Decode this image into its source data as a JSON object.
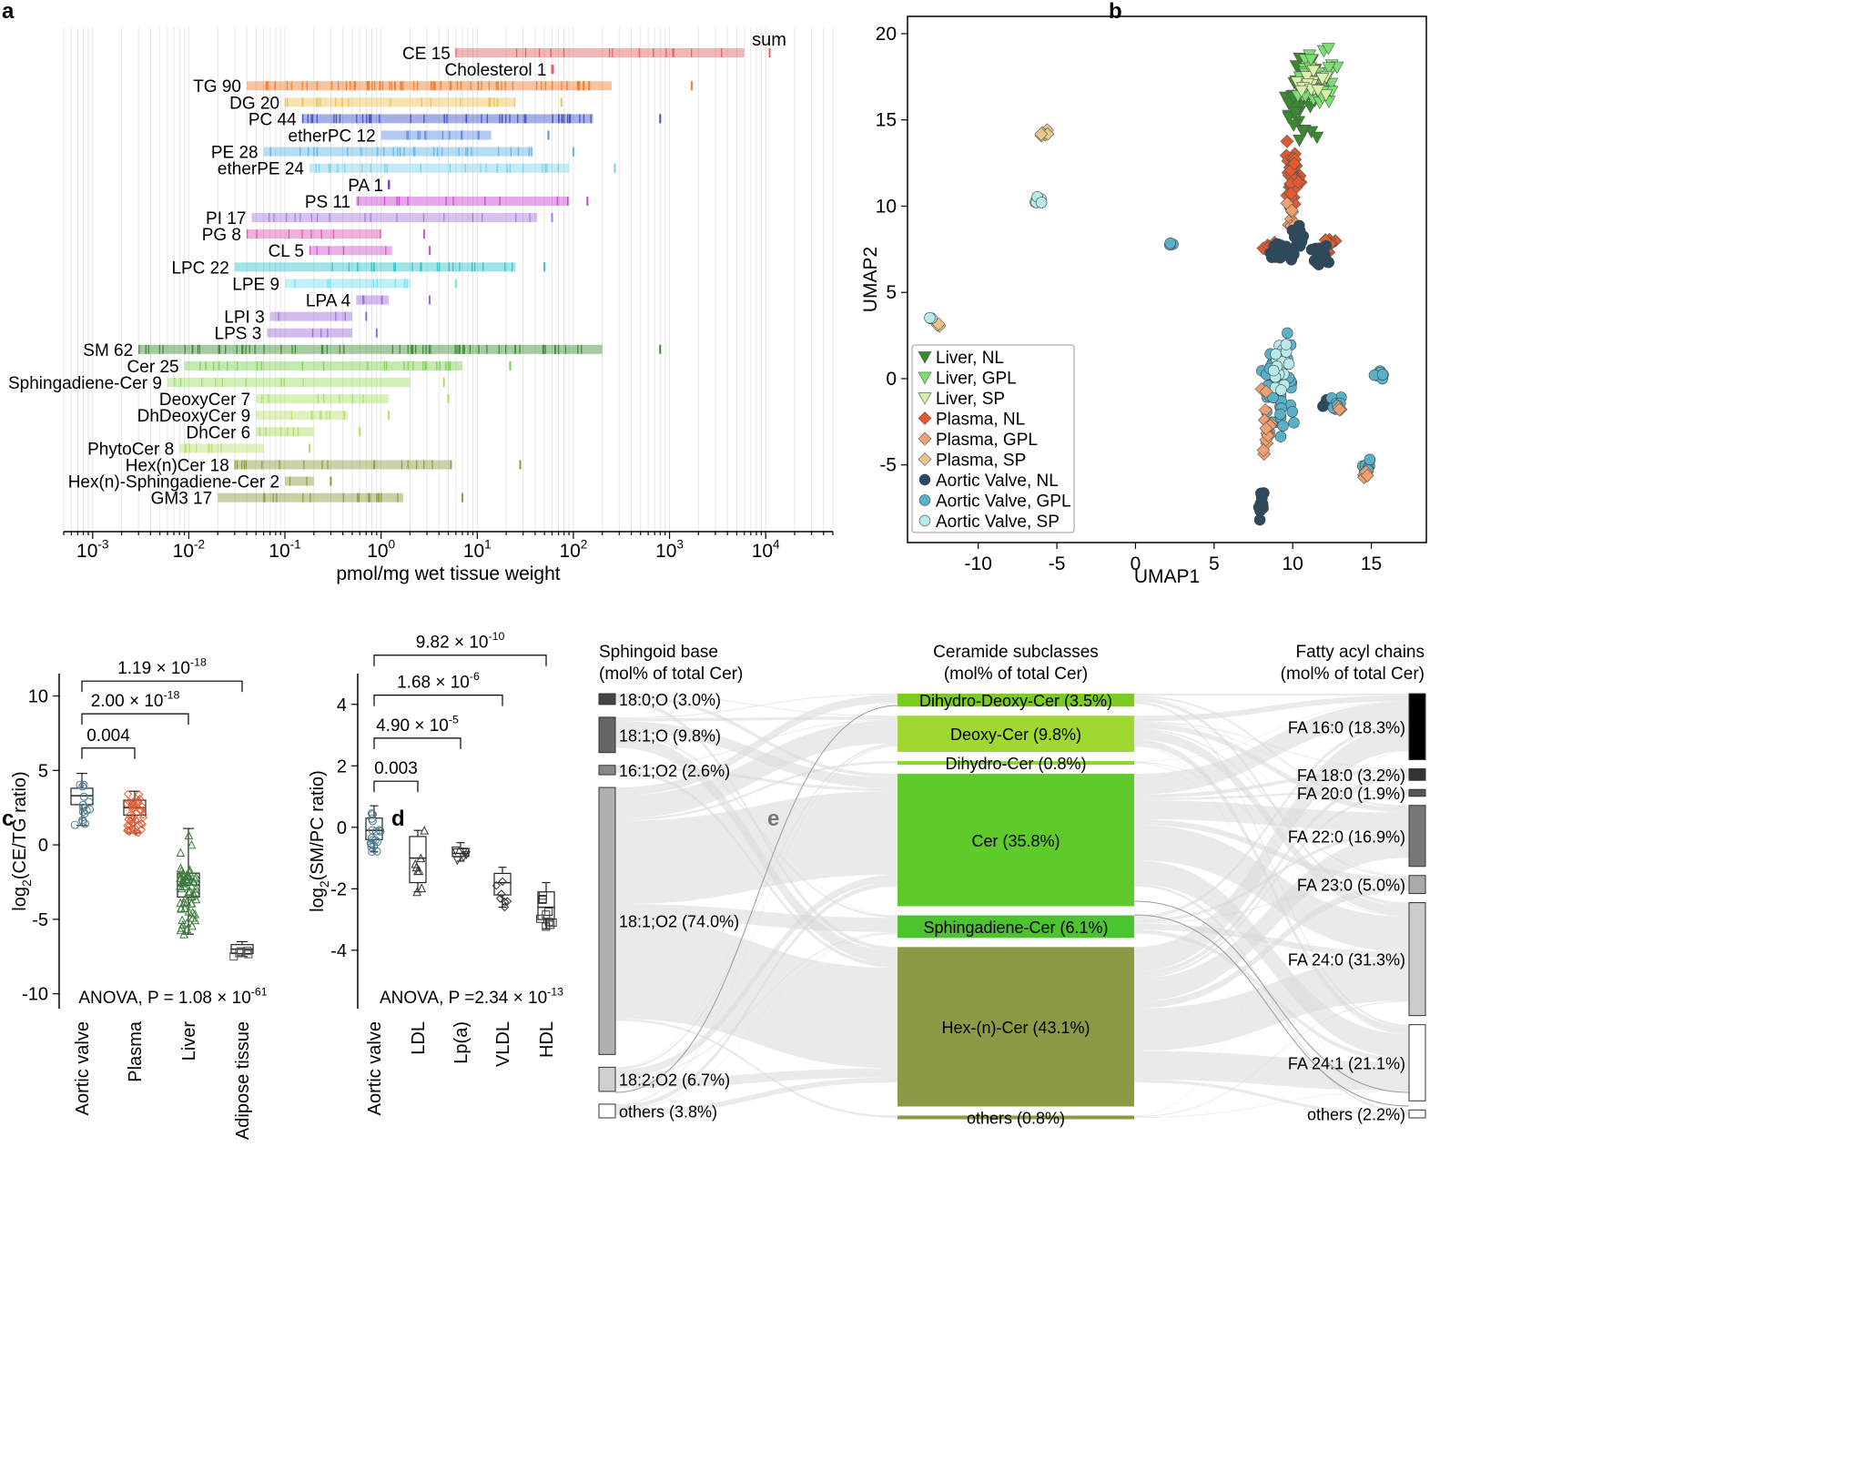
{
  "panel_labels": [
    "a",
    "b",
    "c",
    "d",
    "e"
  ],
  "chart_data": [
    {
      "panel": "a",
      "type": "strip",
      "xscale": "log10",
      "xlim": [
        0.0005,
        50000
      ],
      "xlabel": "pmol/mg wet tissue weight",
      "xticks": [
        "10",
        "10",
        "10",
        "10",
        "10",
        "10",
        "10",
        "10"
      ],
      "xtick_exponents": [
        "-3",
        "-2",
        "-1",
        "0",
        "1",
        "2",
        "3",
        "4"
      ],
      "xtick_values": [
        0.001,
        0.01,
        0.1,
        1,
        10,
        100,
        1000,
        10000
      ],
      "sum_label": "sum",
      "classes": [
        {
          "label": "CE 15",
          "min": 6,
          "max": 6000,
          "sum": 11000,
          "color": "#e35d5d"
        },
        {
          "label": "Cholesterol 1",
          "min": 60,
          "max": 60,
          "sum": 60,
          "color": "#e35d5d"
        },
        {
          "label": "TG 90",
          "min": 0.04,
          "max": 250,
          "sum": 1700,
          "color": "#f07c2a"
        },
        {
          "label": "DG 20",
          "min": 0.1,
          "max": 25,
          "sum": 75,
          "color": "#f0c050"
        },
        {
          "label": "PC 44",
          "min": 0.15,
          "max": 160,
          "sum": 800,
          "color": "#3a50c8"
        },
        {
          "label": "etherPC 12",
          "min": 1,
          "max": 14,
          "sum": 55,
          "color": "#5a8ae0"
        },
        {
          "label": "PE 28",
          "min": 0.06,
          "max": 38,
          "sum": 100,
          "color": "#5ab4e8"
        },
        {
          "label": "etherPE 24",
          "min": 0.18,
          "max": 90,
          "sum": 270,
          "color": "#7ad0ec"
        },
        {
          "label": "PA 1",
          "min": 1.2,
          "max": 1.2,
          "sum": 1.2,
          "color": "#7a40c8"
        },
        {
          "label": "PS 11",
          "min": 0.55,
          "max": 90,
          "sum": 140,
          "color": "#c640d0"
        },
        {
          "label": "PI 17",
          "min": 0.045,
          "max": 42,
          "sum": 60,
          "color": "#a678e0"
        },
        {
          "label": "PG 8",
          "min": 0.04,
          "max": 1,
          "sum": 2.8,
          "color": "#e050b0"
        },
        {
          "label": "CL 5",
          "min": 0.18,
          "max": 1.3,
          "sum": 3.2,
          "color": "#d050d0"
        },
        {
          "label": "LPC 22",
          "min": 0.03,
          "max": 25,
          "sum": 50,
          "color": "#30c0c8"
        },
        {
          "label": "LPE 9",
          "min": 0.1,
          "max": 2,
          "sum": 6,
          "color": "#70e0f0"
        },
        {
          "label": "LPA 4",
          "min": 0.55,
          "max": 1.2,
          "sum": 3.2,
          "color": "#9b6bd6"
        },
        {
          "label": "LPI 3",
          "min": 0.07,
          "max": 0.5,
          "sum": 0.7,
          "color": "#9b6bd6"
        },
        {
          "label": "LPS 3",
          "min": 0.065,
          "max": 0.5,
          "sum": 0.9,
          "color": "#9b6bd6"
        },
        {
          "label": "SM 62",
          "min": 0.003,
          "max": 200,
          "sum": 800,
          "color": "#3a8a30"
        },
        {
          "label": "Cer 25",
          "min": 0.009,
          "max": 7,
          "sum": 22,
          "color": "#7ad050"
        },
        {
          "label": "Sphingadiene-Cer 9",
          "min": 0.006,
          "max": 2,
          "sum": 4.5,
          "color": "#9ae060"
        },
        {
          "label": "DeoxyCer 7",
          "min": 0.05,
          "max": 1.2,
          "sum": 5,
          "color": "#a8e060"
        },
        {
          "label": "DhDeoxyCer 9",
          "min": 0.05,
          "max": 0.45,
          "sum": 1.2,
          "color": "#b8e070"
        },
        {
          "label": "DhCer 6",
          "min": 0.05,
          "max": 0.2,
          "sum": 0.6,
          "color": "#a8e060"
        },
        {
          "label": "PhytoCer 8",
          "min": 0.008,
          "max": 0.06,
          "sum": 0.18,
          "color": "#b8e070"
        },
        {
          "label": "Hex(n)Cer 18",
          "min": 0.03,
          "max": 5.5,
          "sum": 28,
          "color": "#8a9a3a"
        },
        {
          "label": "Hex(n)-Sphingadiene-Cer 2",
          "min": 0.1,
          "max": 0.2,
          "sum": 0.3,
          "color": "#8a9a3a"
        },
        {
          "label": "GM3 17",
          "min": 0.02,
          "max": 1.7,
          "sum": 7,
          "color": "#8a9a3a"
        }
      ]
    },
    {
      "panel": "b",
      "type": "scatter",
      "xlabel": "UMAP1",
      "ylabel": "UMAP2",
      "xlim": [
        -14.5,
        18.5
      ],
      "ylim": [
        -9.5,
        21
      ],
      "xticks": [
        -10,
        -5,
        0,
        5,
        10,
        15
      ],
      "yticks": [
        -5,
        0,
        5,
        10,
        15,
        20
      ],
      "xtick_labels": [
        "-10",
        "-5",
        "0",
        "5",
        "10",
        "15"
      ],
      "ytick_labels": [
        "-5",
        "0",
        "5",
        "10",
        "15",
        "20"
      ],
      "legend": [
        {
          "label": "Liver, NL",
          "marker": "tri",
          "color": "#3a8a30"
        },
        {
          "label": "Liver, GPL",
          "marker": "tri",
          "color": "#7ae070"
        },
        {
          "label": "Liver, SP",
          "marker": "tri",
          "color": "#d8f0a8"
        },
        {
          "label": "Plasma, NL",
          "marker": "dia",
          "color": "#e35a30"
        },
        {
          "label": "Plasma, GPL",
          "marker": "dia",
          "color": "#f0a070"
        },
        {
          "label": "Plasma, SP",
          "marker": "dia",
          "color": "#e8c888"
        },
        {
          "label": "Aortic Valve, NL",
          "marker": "circ",
          "color": "#2a4a60"
        },
        {
          "label": "Aortic Valve, GPL",
          "marker": "circ",
          "color": "#5ab0c8"
        },
        {
          "label": "Aortic Valve, SP",
          "marker": "circ",
          "color": "#b8eaea"
        }
      ],
      "clusters": [
        {
          "group": 0,
          "x": 10.5,
          "y": 16.5,
          "sx": 0.8,
          "sy": 1.8,
          "n": 45
        },
        {
          "group": 1,
          "x": 11.5,
          "y": 17.5,
          "sx": 1.0,
          "sy": 1.2,
          "n": 40
        },
        {
          "group": 2,
          "x": 11.2,
          "y": 17.0,
          "sx": 0.9,
          "sy": 1.0,
          "n": 15
        },
        {
          "group": 3,
          "x": 10.0,
          "y": 11.5,
          "sx": 0.35,
          "sy": 1.6,
          "n": 45
        },
        {
          "group": 3,
          "x": 8.6,
          "y": 7.5,
          "sx": 0.4,
          "sy": 0.3,
          "n": 8
        },
        {
          "group": 3,
          "x": 12.3,
          "y": 7.8,
          "sx": 0.3,
          "sy": 0.4,
          "n": 8
        },
        {
          "group": 4,
          "x": 10.0,
          "y": 9.5,
          "sx": 0.3,
          "sy": 0.8,
          "n": 8
        },
        {
          "group": 5,
          "x": -5.9,
          "y": 14.3,
          "sx": 0.2,
          "sy": 0.2,
          "n": 6
        },
        {
          "group": 5,
          "x": -12.5,
          "y": 3.1,
          "sx": 0.15,
          "sy": 0.15,
          "n": 3
        },
        {
          "group": 6,
          "x": 9.2,
          "y": 7.3,
          "sx": 0.7,
          "sy": 0.35,
          "n": 50
        },
        {
          "group": 6,
          "x": 10.3,
          "y": 8.2,
          "sx": 0.3,
          "sy": 0.8,
          "n": 20
        },
        {
          "group": 6,
          "x": 11.8,
          "y": 7.2,
          "sx": 0.5,
          "sy": 0.4,
          "n": 20
        },
        {
          "group": 6,
          "x": 12.2,
          "y": -1.5,
          "sx": 0.3,
          "sy": 0.3,
          "n": 8
        },
        {
          "group": 6,
          "x": 8.0,
          "y": -7.0,
          "sx": 0.2,
          "sy": 0.8,
          "n": 12
        },
        {
          "group": 7,
          "x": 9.0,
          "y": -0.5,
          "sx": 0.9,
          "sy": 2.2,
          "n": 55
        },
        {
          "group": 7,
          "x": 14.8,
          "y": -5.0,
          "sx": 0.3,
          "sy": 0.4,
          "n": 10
        },
        {
          "group": 7,
          "x": 15.5,
          "y": 0.2,
          "sx": 0.4,
          "sy": 0.3,
          "n": 10
        },
        {
          "group": 7,
          "x": 12.8,
          "y": -1.5,
          "sx": 0.3,
          "sy": 0.3,
          "n": 10
        },
        {
          "group": 7,
          "x": 2.2,
          "y": 7.8,
          "sx": 0.15,
          "sy": 0.1,
          "n": 4
        },
        {
          "group": 8,
          "x": 9.3,
          "y": 0.8,
          "sx": 0.6,
          "sy": 1.2,
          "n": 25
        },
        {
          "group": 8,
          "x": -6.2,
          "y": 10.3,
          "sx": 0.25,
          "sy": 0.2,
          "n": 7
        },
        {
          "group": 8,
          "x": -13.0,
          "y": 3.5,
          "sx": 0.1,
          "sy": 0.1,
          "n": 3
        },
        {
          "group": 4,
          "x": 8.3,
          "y": -2.5,
          "sx": 0.3,
          "sy": 1.3,
          "n": 15
        },
        {
          "group": 4,
          "x": 13.0,
          "y": -1.8,
          "sx": 0.2,
          "sy": 0.2,
          "n": 5
        },
        {
          "group": 4,
          "x": 14.7,
          "y": -5.5,
          "sx": 0.2,
          "sy": 0.2,
          "n": 5
        }
      ]
    },
    {
      "panel": "c",
      "type": "box",
      "ylabel": "log2(CE/TG ratio)",
      "ylabel_main": "log",
      "ylabel_sub": "2",
      "ylabel_rest": "(CE/TG ratio)",
      "ylim": [
        -11,
        11.5
      ],
      "yticks": [
        -10,
        -5,
        0,
        5,
        10
      ],
      "ytick_labels": [
        "-10",
        "-5",
        "0",
        "5",
        "10"
      ],
      "categories": [
        "Aortic valve",
        "Plasma",
        "Liver",
        "Adipose tissue"
      ],
      "colors": [
        "#4a7890",
        "#e35a30",
        "#3a7a3a",
        "#555555"
      ],
      "boxes": [
        {
          "min": 1.3,
          "q1": 2.7,
          "median": 3.3,
          "q3": 3.8,
          "max": 4.8,
          "n": 15,
          "marker": "circ"
        },
        {
          "min": 0.8,
          "q1": 2.0,
          "median": 2.5,
          "q3": 3.0,
          "max": 3.6,
          "n": 40,
          "marker": "dia"
        },
        {
          "min": -6,
          "q1": -3.5,
          "median": -2.7,
          "q3": -1.9,
          "max": 1.1,
          "n": 60,
          "marker": "tri"
        },
        {
          "min": -7.5,
          "q1": -7.3,
          "median": -7.0,
          "q3": -6.7,
          "max": -6.5,
          "n": 6,
          "marker": "box"
        }
      ],
      "brackets": [
        {
          "from": 0,
          "to": 1,
          "y": 6.5,
          "label": "0.004",
          "exp": ""
        },
        {
          "from": 0,
          "to": 2,
          "y": 8.8,
          "label": "2.00 × 10",
          "exp": "-18"
        },
        {
          "from": 0,
          "to": 3,
          "y": 11.0,
          "label": "1.19 × 10",
          "exp": "-18"
        }
      ],
      "anova_label": "ANOVA, P  = 1.08 × 10",
      "anova_exp": "-61"
    },
    {
      "panel": "d",
      "type": "box",
      "ylabel": "log2(SM/PC ratio)",
      "ylabel_main": "log",
      "ylabel_sub": "2",
      "ylabel_rest": "(SM/PC ratio)",
      "ylim": [
        -5.9,
        5
      ],
      "yticks": [
        -4,
        -2,
        0,
        2,
        4
      ],
      "ytick_labels": [
        "-4",
        "-2",
        "0",
        "2",
        "4"
      ],
      "categories": [
        "Aortic valve",
        "LDL",
        "Lp(a)",
        "VLDL",
        "HDL"
      ],
      "colors": [
        "#4a7890",
        "#333333",
        "#333333",
        "#333333",
        "#333333"
      ],
      "boxes": [
        {
          "min": -0.8,
          "q1": -0.4,
          "median": -0.1,
          "q3": 0.3,
          "max": 0.7,
          "n": 18,
          "marker": "circ"
        },
        {
          "min": -2.1,
          "q1": -1.8,
          "median": -1.0,
          "q3": -0.3,
          "max": -0.1,
          "n": 8,
          "marker": "tri"
        },
        {
          "min": -1.1,
          "q1": -0.95,
          "median": -0.85,
          "q3": -0.7,
          "max": -0.5,
          "n": 6,
          "marker": "tri-down"
        },
        {
          "min": -2.6,
          "q1": -2.2,
          "median": -1.8,
          "q3": -1.5,
          "max": -1.3,
          "n": 7,
          "marker": "dia"
        },
        {
          "min": -3.3,
          "q1": -3.0,
          "median": -2.6,
          "q3": -2.1,
          "max": -1.8,
          "n": 10,
          "marker": "sq"
        }
      ],
      "brackets": [
        {
          "from": 0,
          "to": 1,
          "y": 1.5,
          "label": "0.003",
          "exp": ""
        },
        {
          "from": 0,
          "to": 2,
          "y": 2.9,
          "label": "4.90 × 10",
          "exp": "-5"
        },
        {
          "from": 0,
          "to": 3,
          "y": 4.3,
          "label": "1.68 × 10",
          "exp": "-6"
        },
        {
          "from": 0,
          "to": 4,
          "y": 5.6,
          "label": "9.82  × 10",
          "exp": "-10"
        }
      ],
      "anova_label": "ANOVA, P  =2.34 × 10",
      "anova_exp": "-13"
    },
    {
      "panel": "e",
      "type": "sankey",
      "left_title": [
        "Sphingoid base",
        "(mol% of total Cer)"
      ],
      "mid_title": [
        "Ceramide subclasses",
        "(mol% of total Cer)"
      ],
      "right_title": [
        "Fatty acyl chains",
        "(mol% of total Cer)"
      ],
      "left": [
        {
          "label": "18:0;O (3.0%)",
          "value": 3.0,
          "color": "#444444"
        },
        {
          "label": "18:1;O (9.8%)",
          "value": 9.8,
          "color": "#666666"
        },
        {
          "label": "16:1;O2 (2.6%)",
          "value": 2.6,
          "color": "#888888"
        },
        {
          "label": "18:1;O2 (74.0%)",
          "value": 74.0,
          "color": "#b0b0b0"
        },
        {
          "label": "18:2;O2 (6.7%)",
          "value": 6.7,
          "color": "#d0d0d0"
        },
        {
          "label": "others (3.8%)",
          "value": 3.8,
          "color": "#ffffff"
        }
      ],
      "middle": [
        {
          "label": "Dihydro-Deoxy-Cer (3.5%)",
          "value": 3.5,
          "color": "#7acc20"
        },
        {
          "label": "Deoxy-Cer (9.8%)",
          "value": 9.8,
          "color": "#9ed830"
        },
        {
          "label": "Dihydro-Cer (0.8%)",
          "value": 0.8,
          "color": "#8ad830"
        },
        {
          "label": "Cer (35.8%)",
          "value": 35.8,
          "color": "#5ecb2a"
        },
        {
          "label": "Sphingadiene-Cer (6.1%)",
          "value": 6.1,
          "color": "#4cc430"
        },
        {
          "label": "Hex-(n)-Cer (43.1%)",
          "value": 43.1,
          "color": "#8d9a45"
        },
        {
          "label": "others (0.8%)",
          "value": 0.8,
          "color": "#8d9a45"
        }
      ],
      "right": [
        {
          "label": "FA 16:0 (18.3%)",
          "value": 18.3,
          "color": "#000000"
        },
        {
          "label": "FA 18:0 (3.2%)",
          "value": 3.2,
          "color": "#333333"
        },
        {
          "label": "FA 20:0 (1.9%)",
          "value": 1.9,
          "color": "#555555"
        },
        {
          "label": "FA 22:0 (16.9%)",
          "value": 16.9,
          "color": "#777777"
        },
        {
          "label": "FA 23:0 (5.0%)",
          "value": 5.0,
          "color": "#aaaaaa"
        },
        {
          "label": "FA 24:0 (31.3%)",
          "value": 31.3,
          "color": "#cccccc"
        },
        {
          "label": "FA 24:1 (21.1%)",
          "value": 21.1,
          "color": "#ffffff"
        },
        {
          "label": "others (2.2%)",
          "value": 2.2,
          "color": "#ffffff"
        }
      ]
    }
  ]
}
